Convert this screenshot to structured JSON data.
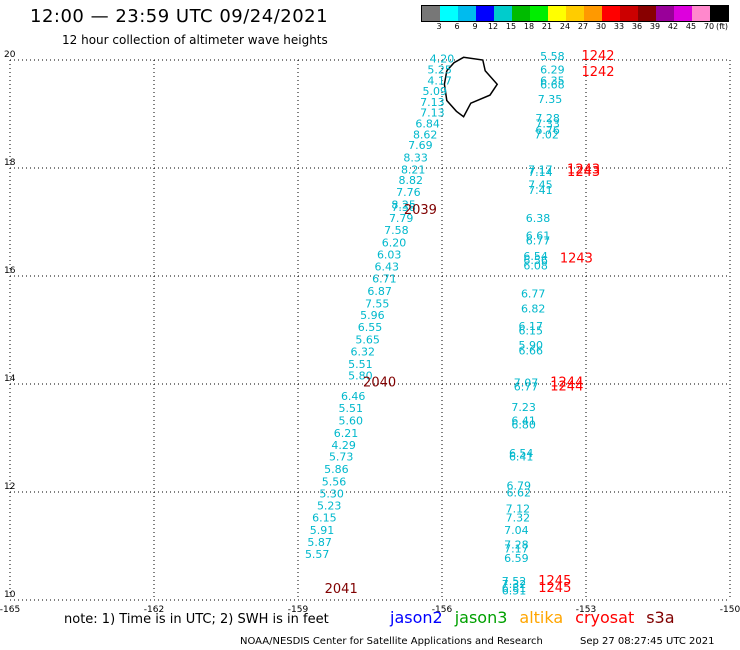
{
  "header": {
    "title": "12:00 — 23:59 UTC 09/24/2021",
    "subtitle": "12 hour collection of altimeter wave heights"
  },
  "colorbar": {
    "unit": "(ft)",
    "labels": [
      "3",
      "6",
      "9",
      "12",
      "15",
      "18",
      "21",
      "24",
      "27",
      "30",
      "33",
      "36",
      "39",
      "42",
      "45",
      "70"
    ],
    "colors": [
      "#777777",
      "#00ffff",
      "#00bbee",
      "#0000ff",
      "#00cccc",
      "#00bb00",
      "#00ee00",
      "#ffff00",
      "#ffcc00",
      "#ff9900",
      "#ff0000",
      "#cc0000",
      "#880000",
      "#990099",
      "#dd00dd",
      "#ff88cc",
      "#000000"
    ]
  },
  "footer": {
    "note": "note: 1) Time is in UTC; 2) SWH is in feet",
    "missions": [
      {
        "name": "jason2",
        "color": "#0000ff"
      },
      {
        "name": "jason3",
        "color": "#00a000"
      },
      {
        "name": "altika",
        "color": "#ffa500"
      },
      {
        "name": "cryosat",
        "color": "#ff0000"
      },
      {
        "name": "s3a",
        "color": "#800000"
      }
    ],
    "credit": "NOAA/NESDIS Center for Satellite Applications and Research",
    "timestamp": "Sep 27 08:27:45 UTC 2021"
  },
  "chart_data": {
    "type": "scatter",
    "x_axis": {
      "label": "",
      "range": [
        -165,
        -150
      ],
      "ticks": [
        "-165",
        "-162",
        "-159",
        "-156",
        "-153",
        "-150"
      ],
      "values": [
        -165,
        -162,
        -159,
        -156,
        -153,
        -150
      ]
    },
    "y_axis": {
      "label": "",
      "range": [
        10,
        20
      ],
      "ticks": [
        "10",
        "12",
        "14",
        "16",
        "18",
        "20"
      ],
      "values": [
        10,
        12,
        14,
        16,
        18,
        20
      ]
    },
    "grid": true,
    "swh_color": "#00b8cc",
    "time_color_cryosat": "#ff0000",
    "time_color_s3a": "#800000",
    "series": [
      {
        "track": "west",
        "points": [
          [
            -156.0,
            19.95,
            "4.20"
          ],
          [
            -156.05,
            19.75,
            "5.25"
          ],
          [
            -156.05,
            19.55,
            "4.17"
          ],
          [
            -156.15,
            19.35,
            "5.09"
          ],
          [
            -156.2,
            19.15,
            "7.13"
          ],
          [
            -156.2,
            18.95,
            "7.13"
          ],
          [
            -156.3,
            18.75,
            "6.84"
          ],
          [
            -156.35,
            18.55,
            "8.62"
          ],
          [
            -156.45,
            18.35,
            "7.69"
          ],
          [
            -156.55,
            18.12,
            "8.33"
          ],
          [
            -156.6,
            17.9,
            "8.21"
          ],
          [
            -156.65,
            17.7,
            "8.82"
          ],
          [
            -156.7,
            17.48,
            "7.76"
          ],
          [
            -156.8,
            17.25,
            "8.25"
          ],
          [
            -156.8,
            17.2,
            "7.38"
          ],
          [
            -156.85,
            17.0,
            "7.79"
          ],
          [
            -156.95,
            16.78,
            "7.58"
          ],
          [
            -157.0,
            16.55,
            "6.20"
          ],
          [
            -157.1,
            16.32,
            "6.03"
          ],
          [
            -157.15,
            16.1,
            "6.43"
          ],
          [
            -157.2,
            15.88,
            "6.71"
          ],
          [
            -157.3,
            15.65,
            "6.87"
          ],
          [
            -157.35,
            15.42,
            "7.55"
          ],
          [
            -157.45,
            15.2,
            "5.96"
          ],
          [
            -157.5,
            14.98,
            "6.55"
          ],
          [
            -157.55,
            14.75,
            "5.65"
          ],
          [
            -157.65,
            14.53,
            "6.32"
          ],
          [
            -157.7,
            14.3,
            "5.51"
          ],
          [
            -157.7,
            14.08,
            "5.80"
          ],
          [
            -157.85,
            13.7,
            "6.46"
          ],
          [
            -157.9,
            13.48,
            "5.51"
          ],
          [
            -157.9,
            13.25,
            "5.60"
          ],
          [
            -158.0,
            13.02,
            "6.21"
          ],
          [
            -158.05,
            12.8,
            "4.29"
          ],
          [
            -158.1,
            12.58,
            "5.73"
          ],
          [
            -158.2,
            12.35,
            "5.86"
          ],
          [
            -158.25,
            12.12,
            "5.56"
          ],
          [
            -158.3,
            11.9,
            "5.30"
          ],
          [
            -158.35,
            11.68,
            "5.23"
          ],
          [
            -158.45,
            11.45,
            "6.15"
          ],
          [
            -158.5,
            11.22,
            "5.91"
          ],
          [
            -158.55,
            11.0,
            "5.87"
          ],
          [
            -158.6,
            10.78,
            "5.57"
          ]
        ]
      },
      {
        "track": "east",
        "points": [
          [
            -153.7,
            20.0,
            "5.58"
          ],
          [
            -153.7,
            19.75,
            "6.29"
          ],
          [
            -153.7,
            19.55,
            "6.35"
          ],
          [
            -153.7,
            19.47,
            "6.68"
          ],
          [
            -153.75,
            19.2,
            "7.35"
          ],
          [
            -153.8,
            18.85,
            "7.28"
          ],
          [
            -153.8,
            18.75,
            "7.33"
          ],
          [
            -153.8,
            18.63,
            "6.76"
          ],
          [
            -153.82,
            18.55,
            "7.02"
          ],
          [
            -153.95,
            17.9,
            "7.17"
          ],
          [
            -153.95,
            17.85,
            "7.14"
          ],
          [
            -153.95,
            17.62,
            "7.45"
          ],
          [
            -153.95,
            17.52,
            "7.41"
          ],
          [
            -154.0,
            17.0,
            "6.38"
          ],
          [
            -154.0,
            16.68,
            "6.61"
          ],
          [
            -154.0,
            16.58,
            "6.77"
          ],
          [
            -154.05,
            16.3,
            "6.54"
          ],
          [
            -154.05,
            16.22,
            "6.56"
          ],
          [
            -154.05,
            16.12,
            "6.08"
          ],
          [
            -154.1,
            15.6,
            "6.77"
          ],
          [
            -154.1,
            15.32,
            "6.82"
          ],
          [
            -154.15,
            15.0,
            "6.17"
          ],
          [
            -154.15,
            14.92,
            "6.15"
          ],
          [
            -154.15,
            14.65,
            "5.90"
          ],
          [
            -154.15,
            14.55,
            "6.66"
          ],
          [
            -154.25,
            13.95,
            "7.07"
          ],
          [
            -154.25,
            13.88,
            "6.77"
          ],
          [
            -154.3,
            13.5,
            "7.23"
          ],
          [
            -154.3,
            13.25,
            "6.41"
          ],
          [
            -154.3,
            13.18,
            "6.80"
          ],
          [
            -154.35,
            12.65,
            "6.54"
          ],
          [
            -154.35,
            12.58,
            "6.41"
          ],
          [
            -154.4,
            12.05,
            "6.79"
          ],
          [
            -154.4,
            11.92,
            "6.62"
          ],
          [
            -154.42,
            11.62,
            "7.12"
          ],
          [
            -154.42,
            11.45,
            "7.32"
          ],
          [
            -154.45,
            11.22,
            "7.04"
          ],
          [
            -154.45,
            10.95,
            "7.28"
          ],
          [
            -154.45,
            10.88,
            "7.17"
          ],
          [
            -154.45,
            10.7,
            "6.59"
          ],
          [
            -154.5,
            10.28,
            "7.52"
          ],
          [
            -154.5,
            10.22,
            "7.32"
          ],
          [
            -154.5,
            10.15,
            "6.81"
          ],
          [
            -154.5,
            10.1,
            "6.51"
          ]
        ]
      }
    ],
    "time_labels": [
      {
        "x": -152.75,
        "y": 20.0,
        "text": "1242",
        "mission": "cryosat"
      },
      {
        "x": -152.75,
        "y": 19.7,
        "text": "1242",
        "mission": "cryosat"
      },
      {
        "x": -153.05,
        "y": 17.9,
        "text": "1243",
        "mission": "cryosat"
      },
      {
        "x": -153.05,
        "y": 17.85,
        "text": "1243",
        "mission": "cryosat"
      },
      {
        "x": -153.2,
        "y": 16.25,
        "text": "1243",
        "mission": "cryosat"
      },
      {
        "x": -153.4,
        "y": 13.95,
        "text": "1244",
        "mission": "cryosat"
      },
      {
        "x": -153.4,
        "y": 13.88,
        "text": "1244",
        "mission": "cryosat"
      },
      {
        "x": -153.65,
        "y": 10.28,
        "text": "1245",
        "mission": "cryosat"
      },
      {
        "x": -153.65,
        "y": 10.15,
        "text": "1245",
        "mission": "cryosat"
      },
      {
        "x": -156.45,
        "y": 17.15,
        "text": "2039",
        "mission": "s3a"
      },
      {
        "x": -157.3,
        "y": 13.95,
        "text": "2040",
        "mission": "s3a"
      },
      {
        "x": -158.1,
        "y": 10.13,
        "text": "2041",
        "mission": "s3a"
      }
    ],
    "coastline": [
      [
        -155.9,
        19.8
      ],
      [
        -155.75,
        19.95
      ],
      [
        -155.55,
        20.05
      ],
      [
        -155.15,
        20.0
      ],
      [
        -155.1,
        19.8
      ],
      [
        -154.85,
        19.55
      ],
      [
        -155.0,
        19.35
      ],
      [
        -155.4,
        19.2
      ],
      [
        -155.55,
        18.95
      ],
      [
        -155.7,
        19.05
      ],
      [
        -155.9,
        19.25
      ],
      [
        -155.95,
        19.55
      ],
      [
        -155.9,
        19.8
      ]
    ]
  }
}
